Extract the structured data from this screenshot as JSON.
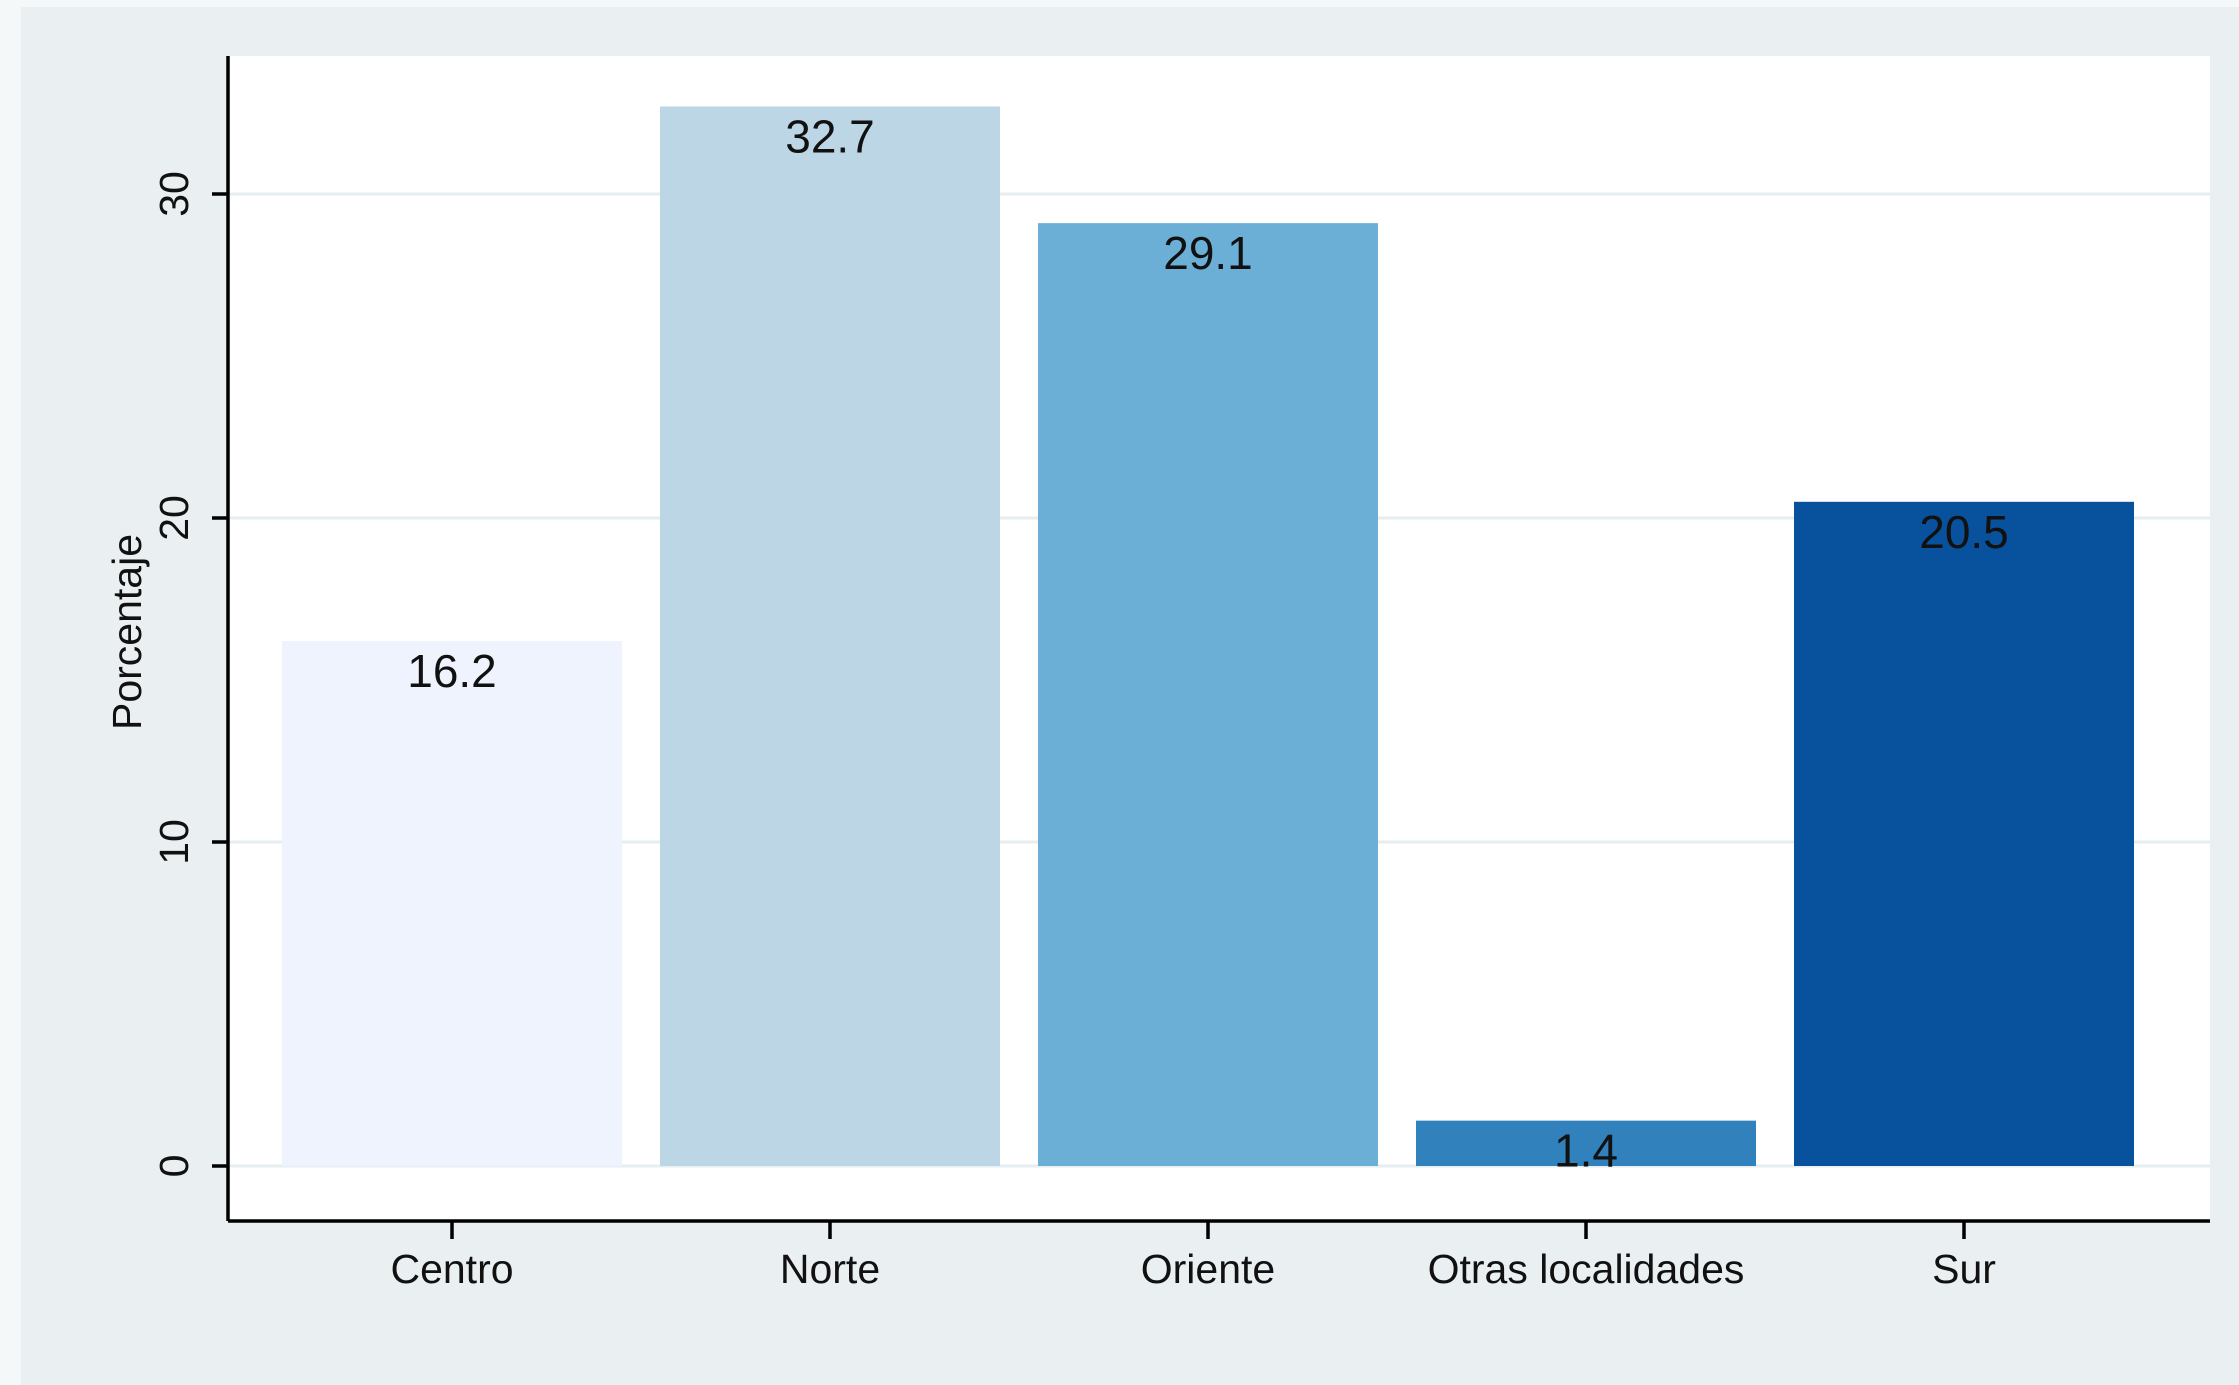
{
  "chart_data": {
    "type": "bar",
    "title": "",
    "xlabel": "",
    "ylabel": "Porcentaje",
    "categories": [
      "Centro",
      "Norte",
      "Oriente",
      "Otras localidades",
      "Sur"
    ],
    "values": [
      16.2,
      32.7,
      29.1,
      1.4,
      20.5
    ],
    "data_labels": [
      "16.2",
      "32.7",
      "29.1",
      "1.4",
      "20.5"
    ],
    "colors": [
      "#eef3fd",
      "#bdd6e6",
      "#6baed6",
      "#3181bd",
      "#08519c"
    ],
    "ylim": [
      0,
      34.3
    ],
    "yticks": [
      0,
      10,
      20,
      30
    ],
    "ytick_labels": [
      "0",
      "10",
      "20",
      "30"
    ],
    "grid": true,
    "legend": "none",
    "colors_other": {
      "figure_background": "#eaf0f2",
      "plot_background": "#ffffff",
      "gridline": "#e6eef1",
      "axis": "#000000"
    }
  }
}
